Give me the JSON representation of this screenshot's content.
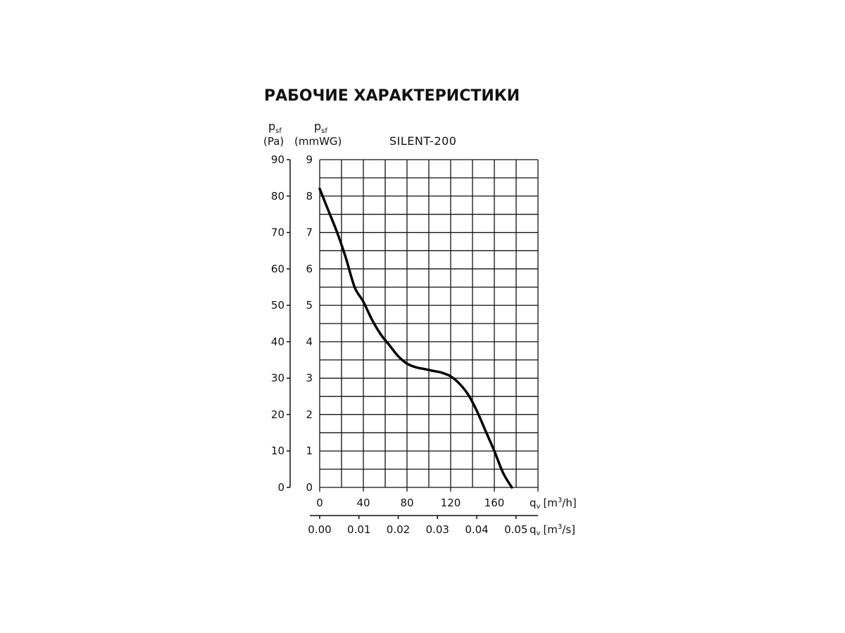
{
  "chart_data": {
    "type": "line",
    "title": "РАБОЧИЕ ХАРАКТЕРИСТИКИ",
    "model": "SILENT-200",
    "y_left": {
      "label": "p",
      "sub": "sf",
      "unit": "(Pa)",
      "ticks": [
        "0",
        "10",
        "20",
        "30",
        "40",
        "50",
        "60",
        "70",
        "80",
        "90"
      ],
      "ylim": [
        0,
        90
      ]
    },
    "y_right": {
      "label": "p",
      "sub": "sf",
      "unit": "(mmWG)",
      "ticks": [
        "0",
        "1",
        "2",
        "3",
        "4",
        "5",
        "6",
        "7",
        "8",
        "9"
      ],
      "ylim": [
        0,
        9
      ]
    },
    "x_primary": {
      "label": "q",
      "sub": "v",
      "unit": "[m",
      "sup": "3",
      "unit_end": "/h]",
      "ticks": [
        "0",
        "40",
        "80",
        "120",
        "160"
      ],
      "tick_values": [
        0,
        40,
        80,
        120,
        160
      ],
      "xlim": [
        0,
        200
      ]
    },
    "x_secondary": {
      "label": "q",
      "sub": "v",
      "unit": "[m",
      "sup": "3",
      "unit_end": "/s]",
      "ticks": [
        "0.00",
        "0.01",
        "0.02",
        "0.03",
        "0.04",
        "0.05"
      ],
      "tick_values": [
        0,
        0.01,
        0.02,
        0.03,
        0.04,
        0.05
      ]
    },
    "grid": true,
    "series": [
      {
        "x": [
          0,
          8,
          16,
          24,
          32,
          40,
          48,
          56,
          64,
          72,
          80,
          88,
          96,
          104,
          112,
          120,
          128,
          136,
          144,
          152,
          160,
          168,
          176
        ],
        "y": [
          82,
          76,
          70,
          63,
          55,
          51,
          46,
          42,
          39,
          36,
          34,
          33,
          32.5,
          32,
          31.5,
          30.5,
          28.5,
          25.5,
          21,
          15.5,
          10,
          4,
          0
        ]
      }
    ]
  }
}
